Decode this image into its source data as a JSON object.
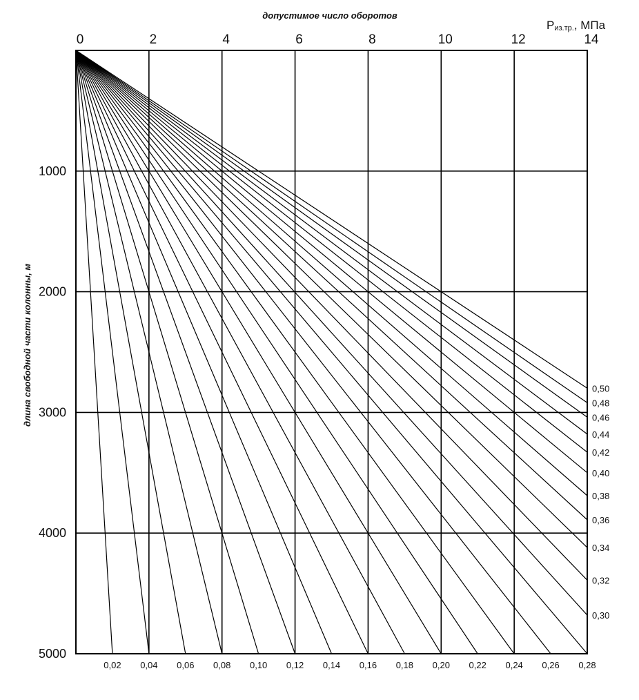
{
  "chart_data": {
    "type": "line",
    "title": "",
    "xlabel": "допустимое число оборотов",
    "ylabel": "длина свободной части колонны, м",
    "x_unit_prefix": "P",
    "x_unit_subscript": "из.тр.",
    "x_unit_suffix": ", МПа",
    "xlim": [
      0,
      14
    ],
    "ylim": [
      0,
      5000
    ],
    "x_ticks": [
      "0",
      "2",
      "4",
      "6",
      "8",
      "10",
      "12",
      "14"
    ],
    "y_ticks": [
      "1000",
      "2000",
      "3000",
      "4000",
      "5000"
    ],
    "grid": true,
    "series": [
      {
        "name": "0,02",
        "x": [
          0,
          1
        ],
        "y": [
          0,
          5000
        ]
      },
      {
        "name": "0,04",
        "x": [
          0,
          2
        ],
        "y": [
          0,
          5000
        ]
      },
      {
        "name": "0,06",
        "x": [
          0,
          3
        ],
        "y": [
          0,
          5000
        ]
      },
      {
        "name": "0,08",
        "x": [
          0,
          4
        ],
        "y": [
          0,
          5000
        ]
      },
      {
        "name": "0,10",
        "x": [
          0,
          5
        ],
        "y": [
          0,
          5000
        ]
      },
      {
        "name": "0,12",
        "x": [
          0,
          6
        ],
        "y": [
          0,
          5000
        ]
      },
      {
        "name": "0,14",
        "x": [
          0,
          7
        ],
        "y": [
          0,
          5000
        ]
      },
      {
        "name": "0,16",
        "x": [
          0,
          8
        ],
        "y": [
          0,
          5000
        ]
      },
      {
        "name": "0,18",
        "x": [
          0,
          9
        ],
        "y": [
          0,
          5000
        ]
      },
      {
        "name": "0,20",
        "x": [
          0,
          10
        ],
        "y": [
          0,
          5000
        ]
      },
      {
        "name": "0,22",
        "x": [
          0,
          11
        ],
        "y": [
          0,
          5000
        ]
      },
      {
        "name": "0,24",
        "x": [
          0,
          12
        ],
        "y": [
          0,
          5000
        ]
      },
      {
        "name": "0,26",
        "x": [
          0,
          13
        ],
        "y": [
          0,
          5000
        ]
      },
      {
        "name": "0,28",
        "x": [
          0,
          14
        ],
        "y": [
          0,
          5000
        ]
      },
      {
        "name": "0,30",
        "x": [
          0,
          14
        ],
        "y": [
          0,
          4680
        ]
      },
      {
        "name": "0,32",
        "x": [
          0,
          14
        ],
        "y": [
          0,
          4390
        ]
      },
      {
        "name": "0,34",
        "x": [
          0,
          14
        ],
        "y": [
          0,
          4120
        ]
      },
      {
        "name": "0,36",
        "x": [
          0,
          14
        ],
        "y": [
          0,
          3890
        ]
      },
      {
        "name": "0,38",
        "x": [
          0,
          14
        ],
        "y": [
          0,
          3690
        ]
      },
      {
        "name": "0,40",
        "x": [
          0,
          14
        ],
        "y": [
          0,
          3500
        ]
      },
      {
        "name": "0,42",
        "x": [
          0,
          14
        ],
        "y": [
          0,
          3330
        ]
      },
      {
        "name": "0,44",
        "x": [
          0,
          14
        ],
        "y": [
          0,
          3180
        ]
      },
      {
        "name": "0,46",
        "x": [
          0,
          14
        ],
        "y": [
          0,
          3040
        ]
      },
      {
        "name": "0,48",
        "x": [
          0,
          14
        ],
        "y": [
          0,
          2920
        ]
      },
      {
        "name": "0,50",
        "x": [
          0,
          14
        ],
        "y": [
          0,
          2800
        ]
      }
    ]
  }
}
